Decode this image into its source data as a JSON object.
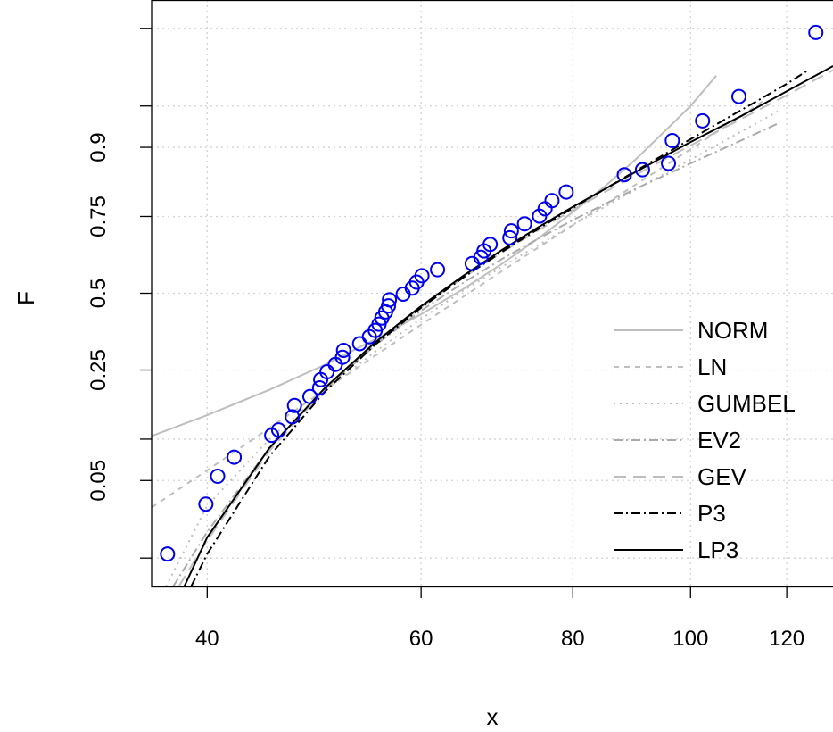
{
  "chart_data": {
    "type": "scatter",
    "title": "",
    "xlabel": "x",
    "ylabel": "F",
    "x_scale": "log",
    "y_scale": "probability (normal quantile)",
    "xlim": [
      36,
      131
    ],
    "ylim": [
      0.005,
      0.995
    ],
    "grid": true,
    "legend_position": "bottom-right",
    "x_ticks": [
      40,
      60,
      80,
      100,
      120
    ],
    "x_tick_labels": [
      "40",
      "60",
      "80",
      "100",
      "120"
    ],
    "y_ticks": [
      0.01,
      0.05,
      0.1,
      0.25,
      0.5,
      0.75,
      0.9,
      0.95,
      0.99
    ],
    "y_tick_labels": [
      "",
      "0.05",
      "",
      "0.25",
      "0.5",
      "0.75",
      "0.9",
      "",
      ""
    ],
    "points": {
      "color": "#0000ee",
      "x": [
        37.1,
        39.9,
        40.8,
        42.1,
        45.2,
        45.8,
        47.0,
        47.2,
        48.6,
        49.5,
        49.6,
        50.2,
        51.0,
        51.7,
        51.8,
        53.4,
        54.4,
        55.0,
        55.4,
        55.7,
        56.1,
        56.4,
        56.5,
        58.0,
        59.0,
        59.5,
        60.1,
        61.9,
        66.1,
        67.2,
        67.6,
        68.4,
        71.0,
        71.2,
        73.0,
        75.1,
        75.9,
        76.9,
        79.0,
        88.2,
        91.3,
        95.9,
        96.6,
        102.3,
        109.6,
        126.8
      ],
      "y": [
        0.011,
        0.032,
        0.054,
        0.075,
        0.106,
        0.115,
        0.139,
        0.162,
        0.182,
        0.203,
        0.224,
        0.245,
        0.266,
        0.287,
        0.308,
        0.329,
        0.351,
        0.372,
        0.393,
        0.414,
        0.435,
        0.456,
        0.477,
        0.497,
        0.518,
        0.539,
        0.561,
        0.582,
        0.603,
        0.624,
        0.645,
        0.666,
        0.687,
        0.708,
        0.729,
        0.751,
        0.771,
        0.792,
        0.813,
        0.851,
        0.861,
        0.873,
        0.91,
        0.935,
        0.958,
        0.989
      ]
    },
    "series": [
      {
        "name": "NORM",
        "color": "#bebebe",
        "dash": "none",
        "x": [
          36,
          40,
          45,
          50,
          55,
          60,
          65,
          70,
          75,
          80,
          85,
          90,
          95,
          100,
          105
        ],
        "y": [
          0.105,
          0.142,
          0.198,
          0.265,
          0.343,
          0.427,
          0.515,
          0.603,
          0.686,
          0.762,
          0.826,
          0.879,
          0.921,
          0.95,
          0.972
        ]
      },
      {
        "name": "LN",
        "color": "#bebebe",
        "dash": "6,6",
        "x": [
          36,
          40,
          45,
          50,
          55,
          60,
          65,
          70,
          75,
          80,
          90,
          100,
          110,
          115
        ],
        "y": [
          0.03,
          0.06,
          0.118,
          0.198,
          0.292,
          0.391,
          0.488,
          0.578,
          0.657,
          0.725,
          0.829,
          0.897,
          0.94,
          0.955
        ]
      },
      {
        "name": "GUMBEL",
        "color": "#bebebe",
        "dash": "2,5",
        "x": [
          37,
          40,
          45,
          50,
          55,
          60,
          65,
          70,
          75,
          80,
          90,
          100,
          110,
          118
        ],
        "y": [
          0.005,
          0.031,
          0.1,
          0.196,
          0.304,
          0.411,
          0.509,
          0.593,
          0.665,
          0.726,
          0.818,
          0.88,
          0.922,
          0.945
        ]
      },
      {
        "name": "EV2",
        "color": "#aaaaaa",
        "dash": "10,4,2,4",
        "x": [
          37.5,
          40,
          45,
          50,
          55,
          60,
          65,
          70,
          75,
          80,
          90,
          100,
          110,
          118
        ],
        "y": [
          0.005,
          0.018,
          0.087,
          0.2,
          0.324,
          0.439,
          0.537,
          0.619,
          0.685,
          0.74,
          0.82,
          0.873,
          0.91,
          0.932
        ]
      },
      {
        "name": "GEV",
        "color": "#bebebe",
        "dash": "14,8",
        "x": [
          37.9,
          40,
          45,
          50,
          55,
          60,
          65,
          70,
          75,
          80,
          90,
          100,
          110,
          120,
          131
        ],
        "y": [
          0.005,
          0.015,
          0.083,
          0.199,
          0.33,
          0.451,
          0.555,
          0.641,
          0.711,
          0.768,
          0.85,
          0.903,
          0.937,
          0.959,
          0.975
        ]
      },
      {
        "name": "P3",
        "color": "#000000",
        "dash": "10,4,2,4",
        "x": [
          38.8,
          40,
          45,
          50,
          55,
          60,
          65,
          70,
          75,
          80,
          90,
          100,
          110,
          120,
          125
        ],
        "y": [
          0.005,
          0.011,
          0.076,
          0.194,
          0.326,
          0.449,
          0.555,
          0.643,
          0.715,
          0.773,
          0.858,
          0.912,
          0.946,
          0.967,
          0.975
        ]
      },
      {
        "name": "LP3",
        "color": "#000000",
        "dash": "none",
        "x": [
          38.3,
          40,
          45,
          50,
          55,
          60,
          65,
          70,
          75,
          80,
          90,
          100,
          110,
          120,
          131
        ],
        "y": [
          0.005,
          0.016,
          0.087,
          0.203,
          0.333,
          0.455,
          0.561,
          0.649,
          0.72,
          0.776,
          0.856,
          0.908,
          0.94,
          0.962,
          0.977
        ]
      }
    ]
  }
}
